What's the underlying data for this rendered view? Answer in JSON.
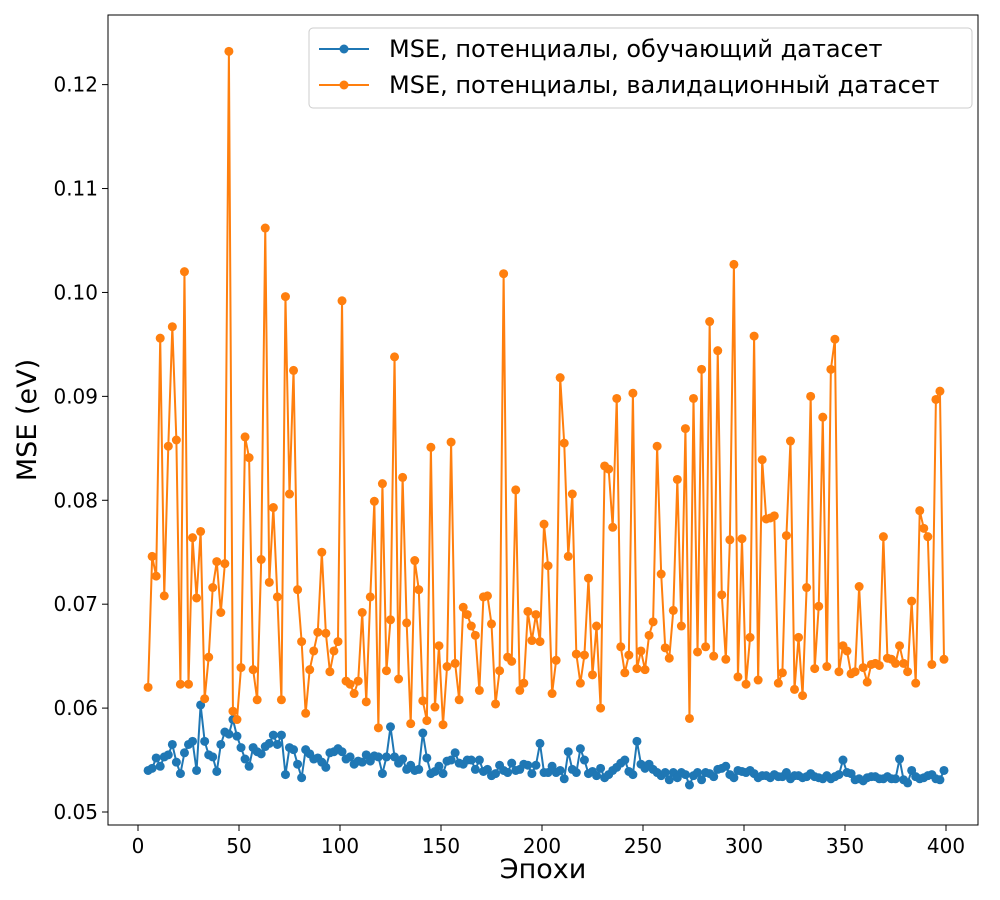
{
  "chart_data": {
    "type": "line",
    "xlabel": "Эпохи",
    "ylabel": "MSE (eV)",
    "xlim": [
      -14.85,
      415.84
    ],
    "ylim": [
      0.04875,
      0.1267
    ],
    "xticks": [
      0,
      50,
      100,
      150,
      200,
      250,
      300,
      350,
      400
    ],
    "yticks": [
      0.05,
      0.06,
      0.07,
      0.08,
      0.09,
      {
        "value": 0.1,
        "label": "0.10"
      },
      0.11,
      0.12
    ],
    "legend": "upper right",
    "x": [
      5,
      7,
      9,
      11,
      13,
      15,
      17,
      19,
      21,
      23,
      25,
      27,
      29,
      31,
      33,
      35,
      37,
      39,
      41,
      43,
      45,
      47,
      49,
      51,
      53,
      55,
      57,
      59,
      61,
      63,
      65,
      67,
      69,
      71,
      73,
      75,
      77,
      79,
      81,
      83,
      85,
      87,
      89,
      91,
      93,
      95,
      97,
      99,
      101,
      103,
      105,
      107,
      109,
      111,
      113,
      115,
      117,
      119,
      121,
      123,
      125,
      127,
      129,
      131,
      133,
      135,
      137,
      139,
      141,
      143,
      145,
      147,
      149,
      151,
      153,
      155,
      157,
      159,
      161,
      163,
      165,
      167,
      169,
      171,
      173,
      175,
      177,
      179,
      181,
      183,
      185,
      187,
      189,
      191,
      193,
      195,
      197,
      199,
      201,
      203,
      205,
      207,
      209,
      211,
      213,
      215,
      217,
      219,
      221,
      223,
      225,
      227,
      229,
      231,
      233,
      235,
      237,
      239,
      241,
      243,
      245,
      247,
      249,
      251,
      253,
      255,
      257,
      259,
      261,
      263,
      265,
      267,
      269,
      271,
      273,
      275,
      277,
      279,
      281,
      283,
      285,
      287,
      289,
      291,
      293,
      295,
      297,
      299,
      301,
      303,
      305,
      307,
      309,
      311,
      313,
      315,
      317,
      319,
      321,
      323,
      325,
      327,
      329,
      331,
      333,
      335,
      337,
      339,
      341,
      343,
      345,
      347,
      349,
      351,
      353,
      355,
      357,
      359,
      361,
      363,
      365,
      367,
      369,
      371,
      373,
      375,
      377,
      379,
      381,
      383,
      385,
      387,
      389,
      391,
      393,
      395,
      397,
      399
    ],
    "series": [
      {
        "name": "MSE, потенциалы, обучающий датасет",
        "color": "#1f77b4",
        "values": [
          0.054,
          0.0542,
          0.0552,
          0.0544,
          0.0553,
          0.0555,
          0.0565,
          0.0548,
          0.0537,
          0.0557,
          0.0565,
          0.0568,
          0.054,
          0.0603,
          0.0568,
          0.0555,
          0.0553,
          0.0539,
          0.0565,
          0.0577,
          0.0575,
          0.0589,
          0.0573,
          0.0562,
          0.0551,
          0.0544,
          0.0562,
          0.0558,
          0.0556,
          0.0563,
          0.0566,
          0.0574,
          0.0565,
          0.0574,
          0.0536,
          0.0562,
          0.056,
          0.0546,
          0.0533,
          0.056,
          0.0556,
          0.0551,
          0.0552,
          0.0548,
          0.0543,
          0.0557,
          0.0558,
          0.0561,
          0.0558,
          0.0551,
          0.0553,
          0.0546,
          0.0549,
          0.0548,
          0.0555,
          0.0549,
          0.0554,
          0.0553,
          0.0537,
          0.0553,
          0.0582,
          0.0553,
          0.0547,
          0.0551,
          0.0541,
          0.0545,
          0.054,
          0.0541,
          0.0576,
          0.0552,
          0.0537,
          0.0539,
          0.0544,
          0.0537,
          0.0549,
          0.055,
          0.0557,
          0.0547,
          0.0546,
          0.055,
          0.055,
          0.0541,
          0.055,
          0.0539,
          0.0541,
          0.0535,
          0.0537,
          0.0545,
          0.054,
          0.0538,
          0.0547,
          0.054,
          0.0541,
          0.0546,
          0.0545,
          0.0537,
          0.0545,
          0.0566,
          0.0538,
          0.0538,
          0.0544,
          0.0538,
          0.054,
          0.0532,
          0.0558,
          0.0541,
          0.0538,
          0.0561,
          0.055,
          0.0537,
          0.0539,
          0.0535,
          0.0542,
          0.0533,
          0.0536,
          0.054,
          0.0543,
          0.0547,
          0.055,
          0.0539,
          0.0536,
          0.0568,
          0.0546,
          0.0542,
          0.0546,
          0.0541,
          0.0538,
          0.0535,
          0.0538,
          0.0531,
          0.0538,
          0.0533,
          0.0538,
          0.0536,
          0.0526,
          0.0535,
          0.0538,
          0.0531,
          0.0538,
          0.0537,
          0.0534,
          0.0541,
          0.0542,
          0.0544,
          0.0536,
          0.0533,
          0.054,
          0.0539,
          0.0538,
          0.054,
          0.0537,
          0.0533,
          0.0535,
          0.0535,
          0.0533,
          0.0536,
          0.0534,
          0.0534,
          0.0538,
          0.0532,
          0.0535,
          0.0535,
          0.0533,
          0.0534,
          0.0537,
          0.0534,
          0.0533,
          0.0532,
          0.0535,
          0.0532,
          0.0534,
          0.0536,
          0.055,
          0.0538,
          0.0537,
          0.0531,
          0.0532,
          0.053,
          0.0533,
          0.0534,
          0.0534,
          0.0532,
          0.0532,
          0.0534,
          0.0532,
          0.0532,
          0.0551,
          0.0531,
          0.0528,
          0.054,
          0.0534,
          0.0532,
          0.0533,
          0.0535,
          0.0536,
          0.0532,
          0.0531,
          0.054
        ]
      },
      {
        "name": "MSE, потенциалы, валидационный датасет",
        "color": "#ff7f0e",
        "values": [
          0.062,
          0.0746,
          0.0727,
          0.0956,
          0.0708,
          0.0852,
          0.0967,
          0.0858,
          0.0623,
          0.102,
          0.0623,
          0.0764,
          0.0706,
          0.077,
          0.0609,
          0.0649,
          0.0716,
          0.0741,
          0.0692,
          0.0739,
          0.1232,
          0.0597,
          0.0589,
          0.0639,
          0.0861,
          0.0841,
          0.0637,
          0.0608,
          0.0743,
          0.1062,
          0.0721,
          0.0793,
          0.0707,
          0.0608,
          0.0996,
          0.0806,
          0.0925,
          0.0714,
          0.0664,
          0.0595,
          0.0637,
          0.0655,
          0.0673,
          0.075,
          0.0672,
          0.0635,
          0.0655,
          0.0664,
          0.0992,
          0.0626,
          0.0623,
          0.0614,
          0.0626,
          0.0692,
          0.0606,
          0.0707,
          0.0799,
          0.0581,
          0.0816,
          0.0636,
          0.0685,
          0.0938,
          0.0628,
          0.0822,
          0.0682,
          0.0585,
          0.0742,
          0.0714,
          0.0607,
          0.0588,
          0.0851,
          0.0601,
          0.066,
          0.0584,
          0.064,
          0.0856,
          0.0643,
          0.0608,
          0.0697,
          0.069,
          0.0679,
          0.067,
          0.0617,
          0.0707,
          0.0708,
          0.0681,
          0.0604,
          0.0636,
          0.1018,
          0.0649,
          0.0645,
          0.081,
          0.0617,
          0.0624,
          0.0693,
          0.0665,
          0.069,
          0.0664,
          0.0777,
          0.0737,
          0.0614,
          0.0646,
          0.0918,
          0.0855,
          0.0746,
          0.0806,
          0.0652,
          0.0624,
          0.0651,
          0.0725,
          0.0632,
          0.0679,
          0.06,
          0.0833,
          0.083,
          0.0774,
          0.0898,
          0.0659,
          0.0634,
          0.0651,
          0.0903,
          0.0638,
          0.0655,
          0.0637,
          0.067,
          0.0683,
          0.0852,
          0.0729,
          0.0658,
          0.0648,
          0.0694,
          0.082,
          0.0679,
          0.0869,
          0.059,
          0.0898,
          0.0654,
          0.0926,
          0.0659,
          0.0972,
          0.065,
          0.0944,
          0.0709,
          0.0647,
          0.0762,
          0.1027,
          0.063,
          0.0763,
          0.0623,
          0.0668,
          0.0958,
          0.0627,
          0.0839,
          0.0782,
          0.0783,
          0.0785,
          0.0624,
          0.0634,
          0.0766,
          0.0857,
          0.0618,
          0.0668,
          0.0612,
          0.0716,
          0.09,
          0.0638,
          0.0698,
          0.088,
          0.064,
          0.0926,
          0.0955,
          0.0635,
          0.066,
          0.0655,
          0.0633,
          0.0635,
          0.0717,
          0.0639,
          0.0625,
          0.0642,
          0.0643,
          0.0641,
          0.0765,
          0.0648,
          0.0647,
          0.0643,
          0.066,
          0.0643,
          0.0635,
          0.0703,
          0.0624,
          0.079,
          0.0773,
          0.0765,
          0.0642,
          0.0897,
          0.0905,
          0.0647
        ]
      }
    ]
  }
}
